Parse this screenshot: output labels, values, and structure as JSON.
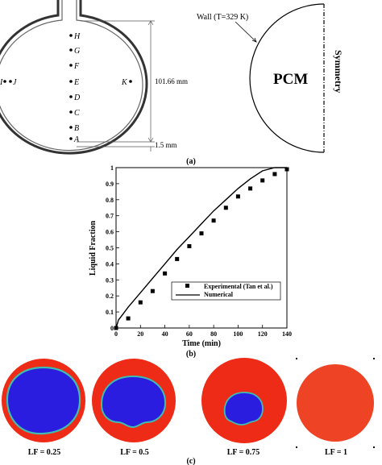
{
  "panel_a": {
    "caption": "(a)",
    "points": [
      {
        "id": "H",
        "side": "right"
      },
      {
        "id": "G",
        "side": "right"
      },
      {
        "id": "F",
        "side": "right"
      },
      {
        "id": "E",
        "side": "right"
      },
      {
        "id": "D",
        "side": "right"
      },
      {
        "id": "C",
        "side": "right"
      },
      {
        "id": "B",
        "side": "right"
      },
      {
        "id": "A",
        "side": "right"
      },
      {
        "id": "J",
        "side": "right"
      },
      {
        "id": "K",
        "side": "left"
      },
      {
        "id": "I",
        "side": "left"
      }
    ],
    "dim_height": "101.66 mm",
    "dim_thickness": "1.5 mm",
    "wall_label": "Wall (T=329 K)",
    "pcm_label": "PCM",
    "symmetry_label": "Symmetry"
  },
  "panel_b": {
    "caption": "(b)"
  },
  "chart_data": {
    "type": "scatter",
    "xlabel": "Time (min)",
    "ylabel": "Liquid Fraction",
    "xlim": [
      0,
      140
    ],
    "ylim": [
      0,
      1
    ],
    "xticks": [
      0,
      20,
      40,
      60,
      80,
      100,
      120,
      140
    ],
    "yticks": [
      0,
      0.1,
      0.2,
      0.3,
      0.4,
      0.5,
      0.6,
      0.7,
      0.8,
      0.9,
      1
    ],
    "legend_position": "lower-right",
    "grid": false,
    "series": [
      {
        "name": "Experimental (Tan et al.)",
        "marker": "square",
        "x": [
          0,
          10,
          20,
          30,
          40,
          50,
          60,
          70,
          80,
          90,
          100,
          110,
          120,
          130,
          140
        ],
        "y": [
          0.0,
          0.06,
          0.16,
          0.23,
          0.34,
          0.43,
          0.51,
          0.59,
          0.67,
          0.75,
          0.82,
          0.87,
          0.92,
          0.96,
          0.99
        ]
      },
      {
        "name": "Numerical",
        "marker": "line",
        "x": [
          0,
          2,
          5,
          10,
          20,
          30,
          40,
          50,
          60,
          70,
          80,
          90,
          100,
          110,
          120,
          130,
          140
        ],
        "y": [
          0.0,
          0.05,
          0.08,
          0.13,
          0.22,
          0.31,
          0.4,
          0.49,
          0.57,
          0.65,
          0.73,
          0.8,
          0.87,
          0.93,
          0.98,
          1.0,
          1.0
        ]
      }
    ]
  },
  "panel_c": {
    "caption": "(c)",
    "labels": [
      "LF = 0.25",
      "LF = 0.5",
      "LF = 0.75",
      "LF = 1"
    ],
    "colors": {
      "liquid": "#ee2b16",
      "solid": "#2a1de0",
      "interface": "#3fbdb0",
      "full_liquid": "#ef4326"
    }
  }
}
